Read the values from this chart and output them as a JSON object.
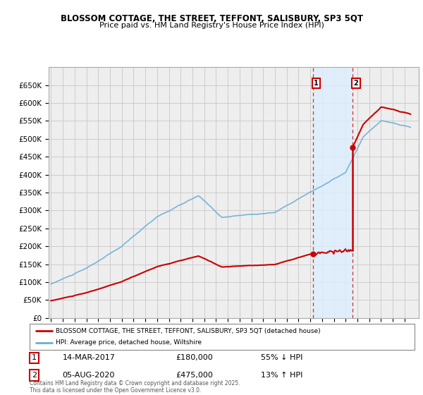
{
  "title": "BLOSSOM COTTAGE, THE STREET, TEFFONT, SALISBURY, SP3 5QT",
  "subtitle": "Price paid vs. HM Land Registry's House Price Index (HPI)",
  "hpi_color": "#6baed6",
  "price_color": "#cc0000",
  "shade_color": "#ddeeff",
  "annotation1_date": "14-MAR-2017",
  "annotation1_price": 180000,
  "annotation1_pct": "55% ↓ HPI",
  "annotation2_date": "05-AUG-2020",
  "annotation2_price": 475000,
  "annotation2_pct": "13% ↑ HPI",
  "legend_label1": "BLOSSOM COTTAGE, THE STREET, TEFFONT, SALISBURY, SP3 5QT (detached house)",
  "legend_label2": "HPI: Average price, detached house, Wiltshire",
  "footer": "Contains HM Land Registry data © Crown copyright and database right 2025.\nThis data is licensed under the Open Government Licence v3.0.",
  "ylim": [
    0,
    700000
  ],
  "yticks": [
    0,
    50000,
    100000,
    150000,
    200000,
    250000,
    300000,
    350000,
    400000,
    450000,
    500000,
    550000,
    600000,
    650000
  ],
  "xmin": 1995,
  "xmax": 2026,
  "background_color": "#ffffff",
  "grid_color": "#cccccc",
  "t1": 2017.2,
  "t2": 2020.58,
  "price_at_t1": 180000,
  "price_at_t2": 475000
}
